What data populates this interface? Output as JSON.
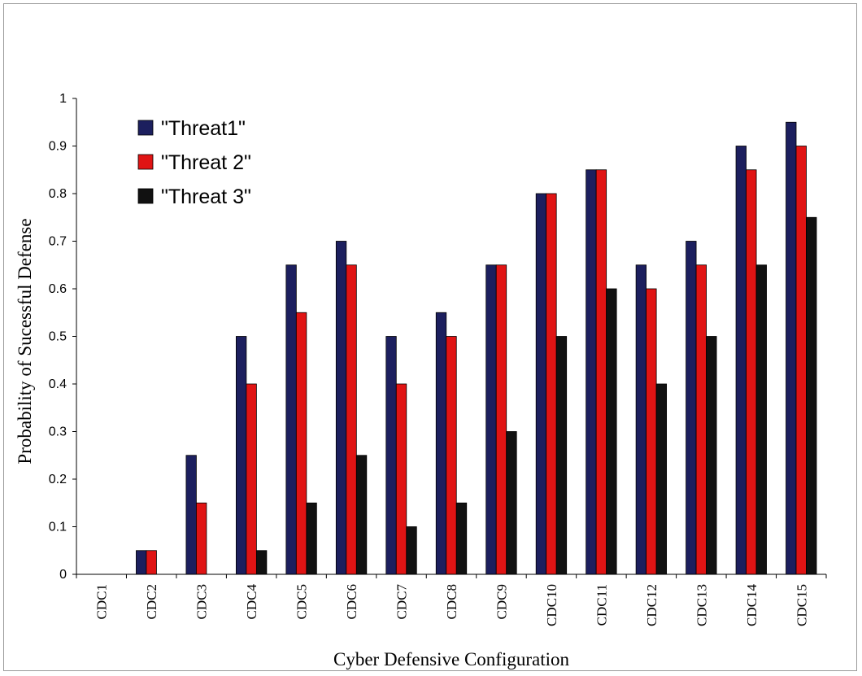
{
  "chart_data": {
    "type": "bar",
    "title": "",
    "xlabel": "Cyber Defensive Configuration",
    "ylabel": "Probability of Sucessful Defense",
    "ylim": [
      0,
      1
    ],
    "yticks": [
      0,
      0.1,
      0.2,
      0.3,
      0.4,
      0.5,
      0.6,
      0.7,
      0.8,
      0.9,
      1
    ],
    "ytick_labels": [
      "0",
      "0.1",
      "0.2",
      "0.3",
      "0.4",
      "0.5",
      "0.6",
      "0.7",
      "0.8",
      "0.9",
      "1"
    ],
    "grid": false,
    "legend_position": "top-left",
    "categories": [
      "CDC1",
      "CDC2",
      "CDC3",
      "CDC4",
      "CDC5",
      "CDC6",
      "CDC7",
      "CDC8",
      "CDC9",
      "CDC10",
      "CDC11",
      "CDC12",
      "CDC13",
      "CDC14",
      "CDC15"
    ],
    "series": [
      {
        "name": "\"Threat1\"",
        "color": "#1c1f5e",
        "values": [
          0,
          0.05,
          0.25,
          0.5,
          0.65,
          0.7,
          0.5,
          0.55,
          0.65,
          0.8,
          0.85,
          0.65,
          0.7,
          0.9,
          0.95
        ]
      },
      {
        "name": "\"Threat 2\"",
        "color": "#e01414",
        "values": [
          0,
          0.05,
          0.15,
          0.4,
          0.55,
          0.65,
          0.4,
          0.5,
          0.65,
          0.8,
          0.85,
          0.6,
          0.65,
          0.85,
          0.9
        ]
      },
      {
        "name": "\"Threat 3\"",
        "color": "#111111",
        "values": [
          0,
          0,
          0,
          0.05,
          0.15,
          0.25,
          0.1,
          0.15,
          0.3,
          0.5,
          0.6,
          0.4,
          0.5,
          0.65,
          0.75
        ]
      }
    ]
  }
}
